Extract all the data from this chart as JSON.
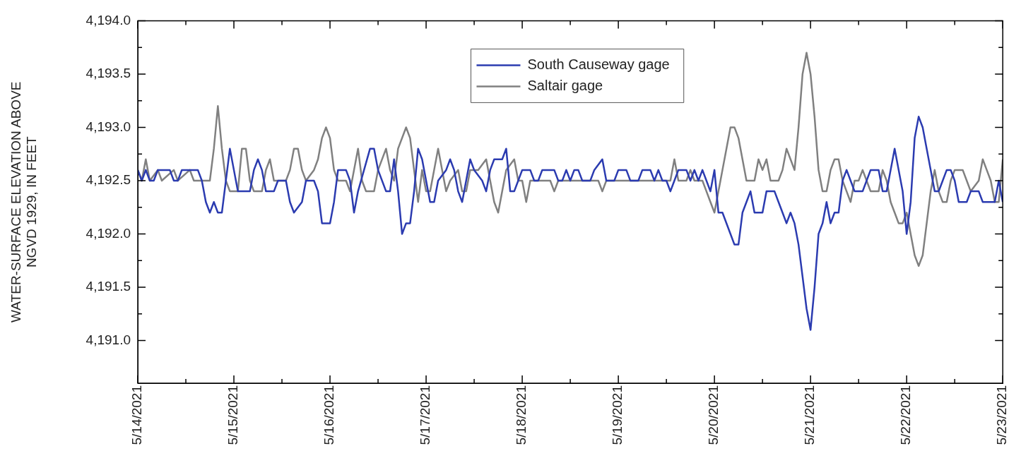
{
  "chart_data": {
    "type": "line",
    "ylabel": "WATER-SURFACE ELEVATION ABOVE\nNGVD 1929, IN FEET",
    "legend": "top",
    "line_style": "solid",
    "marker": "none",
    "ylim": [
      4190.6,
      4194.0
    ],
    "yticks": [
      {
        "value": 4191.0,
        "label": "4,191.0"
      },
      {
        "value": 4191.25,
        "label": null
      },
      {
        "value": 4191.5,
        "label": "4,191.5"
      },
      {
        "value": 4191.75,
        "label": null
      },
      {
        "value": 4192.0,
        "label": "4,192.0"
      },
      {
        "value": 4192.25,
        "label": null
      },
      {
        "value": 4192.5,
        "label": "4,192.5"
      },
      {
        "value": 4192.75,
        "label": null
      },
      {
        "value": 4193.0,
        "label": "4,193.0"
      },
      {
        "value": 4193.25,
        "label": null
      },
      {
        "value": 4193.5,
        "label": "4,193.5"
      },
      {
        "value": 4193.75,
        "label": null
      },
      {
        "value": 4194.0,
        "label": "4,194.0"
      }
    ],
    "xlim": [
      "2021-05-14T00:00",
      "2021-05-23T00:00"
    ],
    "xticks": [
      {
        "value": "2021-05-14T00:00",
        "label": "5/14/2021"
      },
      {
        "value": "2021-05-14T12:00",
        "label": null
      },
      {
        "value": "2021-05-15T00:00",
        "label": "5/15/2021"
      },
      {
        "value": "2021-05-15T12:00",
        "label": null
      },
      {
        "value": "2021-05-16T00:00",
        "label": "5/16/2021"
      },
      {
        "value": "2021-05-16T12:00",
        "label": null
      },
      {
        "value": "2021-05-17T00:00",
        "label": "5/17/2021"
      },
      {
        "value": "2021-05-17T12:00",
        "label": null
      },
      {
        "value": "2021-05-18T00:00",
        "label": "5/18/2021"
      },
      {
        "value": "2021-05-18T12:00",
        "label": null
      },
      {
        "value": "2021-05-19T00:00",
        "label": "5/19/2021"
      },
      {
        "value": "2021-05-19T12:00",
        "label": null
      },
      {
        "value": "2021-05-20T00:00",
        "label": "5/20/2021"
      },
      {
        "value": "2021-05-20T12:00",
        "label": null
      },
      {
        "value": "2021-05-21T00:00",
        "label": "5/21/2021"
      },
      {
        "value": "2021-05-21T12:00",
        "label": null
      },
      {
        "value": "2021-05-22T00:00",
        "label": "5/22/2021"
      },
      {
        "value": "2021-05-22T12:00",
        "label": null
      },
      {
        "value": "2021-05-23T00:00",
        "label": "5/23/2021"
      }
    ],
    "series": [
      {
        "name": "South Causeway gage",
        "color": "#2b3bb0",
        "x": [
          "2021-05-14T00:00",
          "2021-05-14T01:00",
          "2021-05-14T02:00",
          "2021-05-14T03:00",
          "2021-05-14T04:00",
          "2021-05-14T05:00",
          "2021-05-14T08:00",
          "2021-05-14T09:00",
          "2021-05-14T10:00",
          "2021-05-14T11:00",
          "2021-05-14T15:00",
          "2021-05-14T16:00",
          "2021-05-14T17:00",
          "2021-05-14T18:00",
          "2021-05-14T19:00",
          "2021-05-14T20:00",
          "2021-05-14T21:00",
          "2021-05-14T22:00",
          "2021-05-14T23:00",
          "2021-05-15T00:00",
          "2021-05-15T01:00",
          "2021-05-15T04:00",
          "2021-05-15T05:00",
          "2021-05-15T06:00",
          "2021-05-15T07:00",
          "2021-05-15T08:00",
          "2021-05-15T10:00",
          "2021-05-15T11:00",
          "2021-05-15T13:00",
          "2021-05-15T14:00",
          "2021-05-15T15:00",
          "2021-05-15T17:00",
          "2021-05-15T18:00",
          "2021-05-15T20:00",
          "2021-05-15T21:00",
          "2021-05-15T22:00",
          "2021-05-16T00:00",
          "2021-05-16T01:00",
          "2021-05-16T02:00",
          "2021-05-16T04:00",
          "2021-05-16T05:00",
          "2021-05-16T06:00",
          "2021-05-16T07:00",
          "2021-05-16T10:00",
          "2021-05-16T11:00",
          "2021-05-16T12:00",
          "2021-05-16T14:00",
          "2021-05-16T15:00",
          "2021-05-16T16:00",
          "2021-05-16T17:00",
          "2021-05-16T18:00",
          "2021-05-16T19:00",
          "2021-05-16T20:00",
          "2021-05-16T21:00",
          "2021-05-16T22:00",
          "2021-05-16T23:00",
          "2021-05-17T00:00",
          "2021-05-17T01:00",
          "2021-05-17T02:00",
          "2021-05-17T03:00",
          "2021-05-17T05:00",
          "2021-05-17T06:00",
          "2021-05-17T07:00",
          "2021-05-17T08:00",
          "2021-05-17T09:00",
          "2021-05-17T10:00",
          "2021-05-17T11:00",
          "2021-05-17T12:00",
          "2021-05-17T14:00",
          "2021-05-17T15:00",
          "2021-05-17T16:00",
          "2021-05-17T17:00",
          "2021-05-17T19:00",
          "2021-05-17T20:00",
          "2021-05-17T21:00",
          "2021-05-17T22:00",
          "2021-05-17T23:00",
          "2021-05-18T00:00",
          "2021-05-18T02:00",
          "2021-05-18T03:00",
          "2021-05-18T04:00",
          "2021-05-18T05:00",
          "2021-05-18T08:00",
          "2021-05-18T09:00",
          "2021-05-18T10:00",
          "2021-05-18T11:00",
          "2021-05-18T12:00",
          "2021-05-18T13:00",
          "2021-05-18T14:00",
          "2021-05-18T15:00",
          "2021-05-18T17:00",
          "2021-05-18T18:00",
          "2021-05-18T20:00",
          "2021-05-18T21:00",
          "2021-05-18T23:00",
          "2021-05-19T00:00",
          "2021-05-19T02:00",
          "2021-05-19T03:00",
          "2021-05-19T05:00",
          "2021-05-19T06:00",
          "2021-05-19T08:00",
          "2021-05-19T09:00",
          "2021-05-19T10:00",
          "2021-05-19T11:00",
          "2021-05-19T12:00",
          "2021-05-19T13:00",
          "2021-05-19T14:00",
          "2021-05-19T15:00",
          "2021-05-19T17:00",
          "2021-05-19T18:00",
          "2021-05-19T19:00",
          "2021-05-19T20:00",
          "2021-05-19T21:00",
          "2021-05-19T22:00",
          "2021-05-19T23:00",
          "2021-05-20T00:00",
          "2021-05-20T01:00",
          "2021-05-20T02:00",
          "2021-05-20T04:00",
          "2021-05-20T05:00",
          "2021-05-20T06:00",
          "2021-05-20T07:00",
          "2021-05-20T08:00",
          "2021-05-20T09:00",
          "2021-05-20T10:00",
          "2021-05-20T12:00",
          "2021-05-20T13:00",
          "2021-05-20T15:00",
          "2021-05-20T16:00",
          "2021-05-20T17:00",
          "2021-05-20T18:00",
          "2021-05-20T19:00",
          "2021-05-20T20:00",
          "2021-05-20T21:00",
          "2021-05-20T22:00",
          "2021-05-20T23:00",
          "2021-05-21T00:00",
          "2021-05-21T01:00",
          "2021-05-21T02:00",
          "2021-05-21T03:00",
          "2021-05-21T04:00",
          "2021-05-21T05:00",
          "2021-05-21T06:00",
          "2021-05-21T07:00",
          "2021-05-21T08:00",
          "2021-05-21T09:00",
          "2021-05-21T10:00",
          "2021-05-21T11:00",
          "2021-05-21T13:00",
          "2021-05-21T14:00",
          "2021-05-21T15:00",
          "2021-05-21T17:00",
          "2021-05-21T18:00",
          "2021-05-21T19:00",
          "2021-05-21T20:00",
          "2021-05-21T21:00",
          "2021-05-21T22:00",
          "2021-05-21T23:00",
          "2021-05-22T00:00",
          "2021-05-22T01:00",
          "2021-05-22T02:00",
          "2021-05-22T03:00",
          "2021-05-22T04:00",
          "2021-05-22T05:00",
          "2021-05-22T06:00",
          "2021-05-22T07:00",
          "2021-05-22T08:00",
          "2021-05-22T09:00",
          "2021-05-22T10:00",
          "2021-05-22T11:00",
          "2021-05-22T12:00",
          "2021-05-22T13:00",
          "2021-05-22T15:00",
          "2021-05-22T16:00",
          "2021-05-22T18:00",
          "2021-05-22T19:00",
          "2021-05-22T22:00",
          "2021-05-22T23:00",
          "2021-05-23T00:00"
        ],
        "values": [
          4192.6,
          4192.5,
          4192.6,
          4192.5,
          4192.5,
          4192.6,
          4192.6,
          4192.5,
          4192.5,
          4192.6,
          4192.6,
          4192.5,
          4192.3,
          4192.2,
          4192.3,
          4192.2,
          4192.2,
          4192.5,
          4192.8,
          4192.6,
          4192.4,
          4192.4,
          4192.6,
          4192.7,
          4192.6,
          4192.4,
          4192.4,
          4192.5,
          4192.5,
          4192.3,
          4192.2,
          4192.3,
          4192.5,
          4192.5,
          4192.4,
          4192.1,
          4192.1,
          4192.3,
          4192.6,
          4192.6,
          4192.5,
          4192.2,
          4192.4,
          4192.8,
          4192.8,
          4192.6,
          4192.4,
          4192.4,
          4192.7,
          4192.4,
          4192.0,
          4192.1,
          4192.1,
          4192.4,
          4192.8,
          4192.7,
          4192.5,
          4192.3,
          4192.3,
          4192.5,
          4192.6,
          4192.7,
          4192.6,
          4192.4,
          4192.3,
          4192.5,
          4192.7,
          4192.6,
          4192.5,
          4192.4,
          4192.6,
          4192.7,
          4192.7,
          4192.8,
          4192.4,
          4192.4,
          4192.5,
          4192.6,
          4192.6,
          4192.5,
          4192.5,
          4192.6,
          4192.6,
          4192.5,
          4192.5,
          4192.6,
          4192.5,
          4192.6,
          4192.6,
          4192.5,
          4192.5,
          4192.6,
          4192.7,
          4192.5,
          4192.5,
          4192.6,
          4192.6,
          4192.5,
          4192.5,
          4192.6,
          4192.6,
          4192.5,
          4192.6,
          4192.5,
          4192.5,
          4192.4,
          4192.5,
          4192.6,
          4192.6,
          4192.5,
          4192.6,
          4192.5,
          4192.6,
          4192.5,
          4192.4,
          4192.6,
          4192.2,
          4192.2,
          4192.0,
          4191.9,
          4191.9,
          4192.2,
          4192.3,
          4192.4,
          4192.2,
          4192.2,
          4192.4,
          4192.4,
          4192.3,
          4192.2,
          4192.1,
          4192.2,
          4192.1,
          4191.9,
          4191.6,
          4191.3,
          4191.1,
          4191.5,
          4192.0,
          4192.1,
          4192.3,
          4192.1,
          4192.2,
          4192.2,
          4192.5,
          4192.6,
          4192.5,
          4192.4,
          4192.4,
          4192.5,
          4192.6,
          4192.6,
          4192.4,
          4192.4,
          4192.6,
          4192.8,
          4192.6,
          4192.4,
          4192.0,
          4192.3,
          4192.9,
          4193.1,
          4193.0,
          4192.8,
          4192.6,
          4192.4,
          4192.4,
          4192.5,
          4192.6,
          4192.6,
          4192.5,
          4192.3,
          4192.3,
          4192.4,
          4192.4,
          4192.3,
          4192.3,
          4192.5,
          4192.3
        ]
      },
      {
        "name": "Saltair gage",
        "color": "#808080",
        "x": [
          "2021-05-14T00:00",
          "2021-05-14T01:00",
          "2021-05-14T02:00",
          "2021-05-14T03:00",
          "2021-05-14T05:00",
          "2021-05-14T06:00",
          "2021-05-14T09:00",
          "2021-05-14T10:00",
          "2021-05-14T13:00",
          "2021-05-14T14:00",
          "2021-05-14T18:00",
          "2021-05-14T19:00",
          "2021-05-14T20:00",
          "2021-05-14T21:00",
          "2021-05-14T22:00",
          "2021-05-14T23:00",
          "2021-05-15T01:00",
          "2021-05-15T02:00",
          "2021-05-15T03:00",
          "2021-05-15T04:00",
          "2021-05-15T05:00",
          "2021-05-15T07:00",
          "2021-05-15T08:00",
          "2021-05-15T09:00",
          "2021-05-15T10:00",
          "2021-05-15T13:00",
          "2021-05-15T14:00",
          "2021-05-15T15:00",
          "2021-05-15T16:00",
          "2021-05-15T17:00",
          "2021-05-15T18:00",
          "2021-05-15T20:00",
          "2021-05-15T21:00",
          "2021-05-15T22:00",
          "2021-05-15T23:00",
          "2021-05-16T00:00",
          "2021-05-16T01:00",
          "2021-05-16T02:00",
          "2021-05-16T04:00",
          "2021-05-16T05:00",
          "2021-05-16T06:00",
          "2021-05-16T07:00",
          "2021-05-16T08:00",
          "2021-05-16T09:00",
          "2021-05-16T11:00",
          "2021-05-16T12:00",
          "2021-05-16T14:00",
          "2021-05-16T15:00",
          "2021-05-16T16:00",
          "2021-05-16T17:00",
          "2021-05-16T19:00",
          "2021-05-16T20:00",
          "2021-05-16T21:00",
          "2021-05-16T22:00",
          "2021-05-16T23:00",
          "2021-05-17T00:00",
          "2021-05-17T01:00",
          "2021-05-17T02:00",
          "2021-05-17T03:00",
          "2021-05-17T04:00",
          "2021-05-17T05:00",
          "2021-05-17T06:00",
          "2021-05-17T08:00",
          "2021-05-17T09:00",
          "2021-05-17T10:00",
          "2021-05-17T11:00",
          "2021-05-17T13:00",
          "2021-05-17T15:00",
          "2021-05-17T16:00",
          "2021-05-17T17:00",
          "2021-05-17T18:00",
          "2021-05-17T19:00",
          "2021-05-17T20:00",
          "2021-05-17T22:00",
          "2021-05-17T23:00",
          "2021-05-18T00:00",
          "2021-05-18T01:00",
          "2021-05-18T02:00",
          "2021-05-18T07:00",
          "2021-05-18T08:00",
          "2021-05-18T09:00",
          "2021-05-18T19:00",
          "2021-05-18T20:00",
          "2021-05-18T21:00",
          "2021-05-19T13:00",
          "2021-05-19T14:00",
          "2021-05-19T15:00",
          "2021-05-19T17:00",
          "2021-05-19T18:00",
          "2021-05-19T19:00",
          "2021-05-19T21:00",
          "2021-05-19T22:00",
          "2021-05-19T23:00",
          "2021-05-20T00:00",
          "2021-05-20T01:00",
          "2021-05-20T02:00",
          "2021-05-20T03:00",
          "2021-05-20T04:00",
          "2021-05-20T05:00",
          "2021-05-20T06:00",
          "2021-05-20T07:00",
          "2021-05-20T08:00",
          "2021-05-20T10:00",
          "2021-05-20T11:00",
          "2021-05-20T12:00",
          "2021-05-20T13:00",
          "2021-05-20T14:00",
          "2021-05-20T16:00",
          "2021-05-20T17:00",
          "2021-05-20T18:00",
          "2021-05-20T19:00",
          "2021-05-20T20:00",
          "2021-05-20T21:00",
          "2021-05-20T22:00",
          "2021-05-20T23:00",
          "2021-05-21T00:00",
          "2021-05-21T01:00",
          "2021-05-21T02:00",
          "2021-05-21T03:00",
          "2021-05-21T04:00",
          "2021-05-21T05:00",
          "2021-05-21T06:00",
          "2021-05-21T07:00",
          "2021-05-21T08:00",
          "2021-05-21T09:00",
          "2021-05-21T10:00",
          "2021-05-21T11:00",
          "2021-05-21T12:00",
          "2021-05-21T13:00",
          "2021-05-21T14:00",
          "2021-05-21T15:00",
          "2021-05-21T17:00",
          "2021-05-21T18:00",
          "2021-05-21T19:00",
          "2021-05-21T20:00",
          "2021-05-21T21:00",
          "2021-05-21T22:00",
          "2021-05-21T23:00",
          "2021-05-22T00:00",
          "2021-05-22T01:00",
          "2021-05-22T02:00",
          "2021-05-22T03:00",
          "2021-05-22T04:00",
          "2021-05-22T05:00",
          "2021-05-22T06:00",
          "2021-05-22T07:00",
          "2021-05-22T08:00",
          "2021-05-22T09:00",
          "2021-05-22T10:00",
          "2021-05-22T11:00",
          "2021-05-22T12:00",
          "2021-05-22T14:00",
          "2021-05-22T15:00",
          "2021-05-22T16:00",
          "2021-05-22T18:00",
          "2021-05-22T19:00",
          "2021-05-22T20:00",
          "2021-05-22T21:00",
          "2021-05-22T22:00",
          "2021-05-22T23:00",
          "2021-05-23T00:00"
        ],
        "values": [
          4192.6,
          4192.5,
          4192.7,
          4192.5,
          4192.6,
          4192.5,
          4192.6,
          4192.5,
          4192.6,
          4192.5,
          4192.5,
          4192.8,
          4193.2,
          4192.8,
          4192.5,
          4192.4,
          4192.4,
          4192.8,
          4192.8,
          4192.5,
          4192.4,
          4192.4,
          4192.6,
          4192.7,
          4192.5,
          4192.5,
          4192.6,
          4192.8,
          4192.8,
          4192.6,
          4192.5,
          4192.6,
          4192.7,
          4192.9,
          4193.0,
          4192.9,
          4192.6,
          4192.5,
          4192.5,
          4192.4,
          4192.6,
          4192.8,
          4192.5,
          4192.4,
          4192.4,
          4192.6,
          4192.8,
          4192.6,
          4192.5,
          4192.8,
          4193.0,
          4192.9,
          4192.6,
          4192.3,
          4192.6,
          4192.4,
          4192.4,
          4192.6,
          4192.8,
          4192.6,
          4192.4,
          4192.5,
          4192.6,
          4192.4,
          4192.4,
          4192.6,
          4192.6,
          4192.7,
          4192.5,
          4192.3,
          4192.2,
          4192.4,
          4192.6,
          4192.7,
          4192.5,
          4192.5,
          4192.3,
          4192.5,
          4192.5,
          4192.4,
          4192.5,
          4192.5,
          4192.4,
          4192.5,
          4192.5,
          4192.7,
          4192.5,
          4192.5,
          4192.6,
          4192.5,
          4192.5,
          4192.4,
          4192.3,
          4192.2,
          4192.4,
          4192.6,
          4192.8,
          4193.0,
          4193.0,
          4192.9,
          4192.7,
          4192.5,
          4192.5,
          4192.7,
          4192.6,
          4192.7,
          4192.5,
          4192.5,
          4192.6,
          4192.8,
          4192.7,
          4192.6,
          4193.0,
          4193.5,
          4193.7,
          4193.5,
          4193.1,
          4192.6,
          4192.4,
          4192.4,
          4192.6,
          4192.7,
          4192.7,
          4192.5,
          4192.4,
          4192.3,
          4192.5,
          4192.5,
          4192.6,
          4192.5,
          4192.4,
          4192.4,
          4192.6,
          4192.5,
          4192.3,
          4192.2,
          4192.1,
          4192.1,
          4192.2,
          4192.0,
          4191.8,
          4191.7,
          4191.8,
          4192.1,
          4192.4,
          4192.6,
          4192.4,
          4192.3,
          4192.3,
          4192.5,
          4192.6,
          4192.6,
          4192.5,
          4192.4,
          4192.5,
          4192.7,
          4192.6,
          4192.5,
          4192.3,
          4192.3,
          4192.7
        ]
      }
    ]
  }
}
